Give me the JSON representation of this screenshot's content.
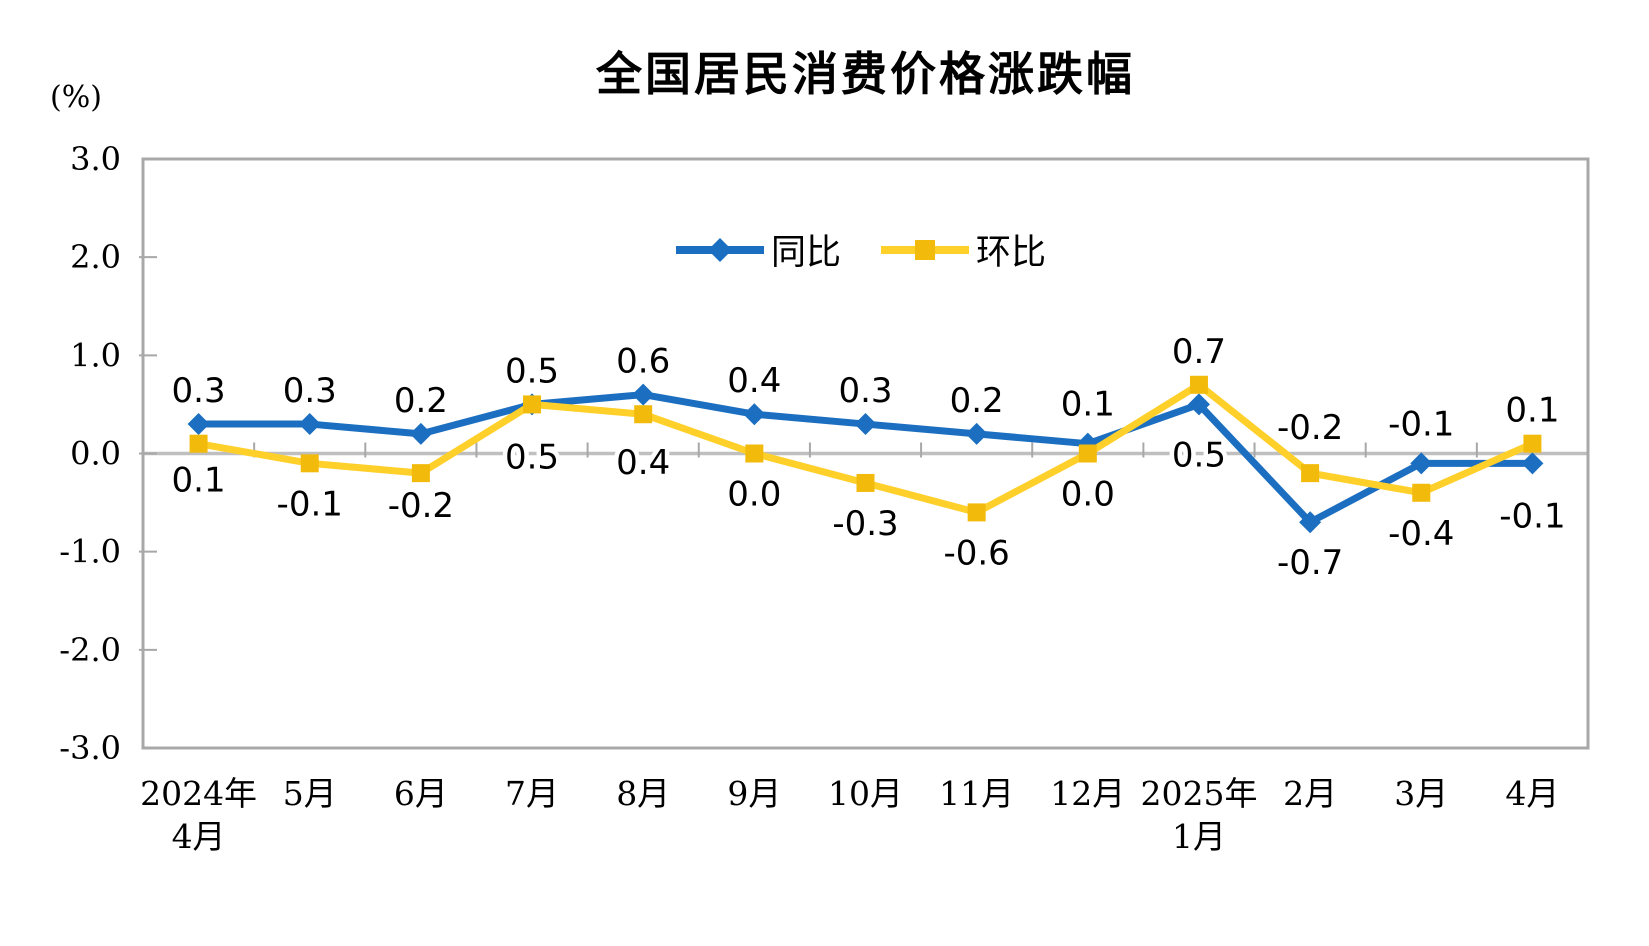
{
  "page": {
    "background": "#FFFFFF"
  },
  "chart_data": {
    "type": "line",
    "title": "全国居民消费价格涨跌幅",
    "unit_label": "(%)",
    "categories": [
      [
        "2024年",
        "4月"
      ],
      [
        "5月"
      ],
      [
        "6月"
      ],
      [
        "7月"
      ],
      [
        "8月"
      ],
      [
        "9月"
      ],
      [
        "10月"
      ],
      [
        "11月"
      ],
      [
        "12月"
      ],
      [
        "2025年",
        "1月"
      ],
      [
        "2月"
      ],
      [
        "3月"
      ],
      [
        "4月"
      ]
    ],
    "ylim": [
      -3.0,
      3.0
    ],
    "ytick_step": 1.0,
    "ytick_labels": [
      "3.0",
      "2.0",
      "1.0",
      "0.0",
      "-1.0",
      "-2.0",
      "-3.0"
    ],
    "grid": "zero-line-only",
    "legend_position": "inside-top-center",
    "axis_color": "#A8A8A8",
    "zero_line_color": "#BFBFBF",
    "label_color": "#000000",
    "series": [
      {
        "name": "同比",
        "marker": "diamond",
        "line_color": "#1C6FC0",
        "marker_color": "#1C6FC0",
        "values": [
          0.3,
          0.3,
          0.2,
          0.5,
          0.6,
          0.4,
          0.3,
          0.2,
          0.1,
          0.5,
          -0.7,
          -0.1,
          -0.1
        ],
        "labels": [
          "0.3",
          "0.3",
          "0.2",
          "0.5",
          "0.6",
          "0.4",
          "0.3",
          "0.2",
          "0.1",
          "0.5",
          "-0.7",
          "-0.1",
          "-0.1"
        ],
        "label_side": [
          "above",
          "above",
          "above",
          "above",
          "above",
          "above",
          "above",
          "above",
          "above",
          "below",
          "below",
          "above",
          "below"
        ]
      },
      {
        "name": "环比",
        "marker": "square",
        "line_color": "#FFCF2A",
        "marker_color": "#F2BB0B",
        "values": [
          0.1,
          -0.1,
          -0.2,
          0.5,
          0.4,
          0.0,
          -0.3,
          -0.6,
          0.0,
          0.7,
          -0.2,
          -0.4,
          0.1
        ],
        "labels": [
          "0.1",
          "-0.1",
          "-0.2",
          "0.5",
          "0.4",
          "0.0",
          "-0.3",
          "-0.6",
          "0.0",
          "0.7",
          "-0.2",
          "-0.4",
          "0.1"
        ],
        "label_side": [
          "below",
          "below",
          "below",
          "below",
          "below",
          "below",
          "below",
          "below",
          "below",
          "above",
          "above",
          "below",
          "above"
        ]
      }
    ]
  }
}
